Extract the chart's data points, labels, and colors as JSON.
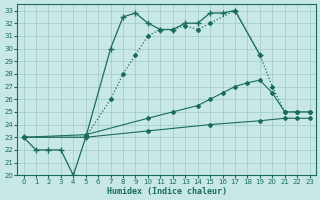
{
  "xlabel": "Humidex (Indice chaleur)",
  "background_color": "#c8e8e8",
  "grid_color": "#a0c8c8",
  "line_color": "#1a6b5a",
  "xlim": [
    -0.5,
    23.5
  ],
  "ylim": [
    20,
    33.5
  ],
  "xticks": [
    0,
    1,
    2,
    3,
    4,
    5,
    6,
    7,
    8,
    9,
    10,
    11,
    12,
    13,
    14,
    15,
    16,
    17,
    18,
    19,
    20,
    21,
    22,
    23
  ],
  "yticks": [
    20,
    21,
    22,
    23,
    24,
    25,
    26,
    27,
    28,
    29,
    30,
    31,
    32,
    33
  ],
  "series": [
    {
      "x": [
        0,
        1,
        2,
        3,
        4,
        5,
        7,
        8,
        9,
        10,
        11,
        12,
        13,
        14,
        15,
        16,
        17,
        19
      ],
      "y": [
        23,
        22,
        22,
        22,
        20,
        23,
        30,
        32.5,
        32.8,
        32.0,
        31.5,
        31.5,
        32.0,
        32.0,
        32.8,
        32.8,
        33.0,
        29.5
      ],
      "style": "-",
      "marker": "+",
      "markersize": 4,
      "linewidth": 0.9
    },
    {
      "x": [
        0,
        5,
        7,
        8,
        9,
        10,
        11,
        12,
        13,
        14,
        15,
        17,
        19,
        20,
        21,
        22,
        23
      ],
      "y": [
        23,
        23,
        26,
        28,
        29.5,
        31.0,
        31.5,
        31.5,
        31.8,
        31.5,
        32.0,
        33.0,
        29.5,
        27.0,
        25.0,
        25.0,
        25.0
      ],
      "style": ":",
      "marker": "D",
      "markersize": 2,
      "linewidth": 0.9
    },
    {
      "x": [
        0,
        5,
        10,
        12,
        14,
        15,
        16,
        17,
        18,
        19,
        20,
        21,
        22,
        23
      ],
      "y": [
        23,
        23.2,
        24.5,
        25.0,
        25.5,
        26.0,
        26.5,
        27.0,
        27.3,
        27.5,
        26.5,
        25.0,
        25.0,
        25.0
      ],
      "style": "-",
      "marker": "D",
      "markersize": 2,
      "linewidth": 0.8
    },
    {
      "x": [
        0,
        5,
        10,
        15,
        19,
        21,
        22,
        23
      ],
      "y": [
        23,
        23.0,
        23.5,
        24.0,
        24.3,
        24.5,
        24.5,
        24.5
      ],
      "style": "-",
      "marker": "D",
      "markersize": 2,
      "linewidth": 0.8
    }
  ]
}
